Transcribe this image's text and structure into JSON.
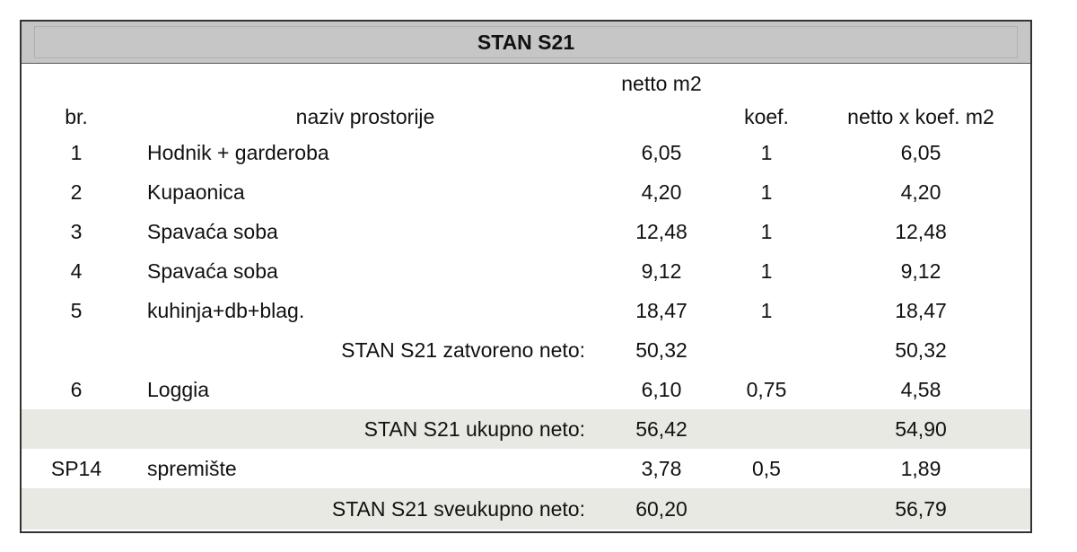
{
  "title": "STAN S21",
  "headers": {
    "br": "br.",
    "naziv": "naziv prostorije",
    "netto": "netto m2",
    "koef": "koef.",
    "result": "netto x koef. m2"
  },
  "rows": [
    {
      "br": "1",
      "naziv": "Hodnik + garderoba",
      "netto": "6,05",
      "koef": "1",
      "result": "6,05"
    },
    {
      "br": "2",
      "naziv": "Kupaonica",
      "netto": "4,20",
      "koef": "1",
      "result": "4,20"
    },
    {
      "br": "3",
      "naziv": "Spavaća soba",
      "netto": "12,48",
      "koef": "1",
      "result": "12,48"
    },
    {
      "br": "4",
      "naziv": "Spavaća soba",
      "netto": "9,12",
      "koef": "1",
      "result": "9,12"
    },
    {
      "br": "5",
      "naziv": "kuhinja+db+blag.",
      "netto": "18,47",
      "koef": "1",
      "result": "18,47"
    },
    {
      "label": "STAN S21 zatvoreno neto:",
      "netto": "50,32",
      "result": "50,32"
    },
    {
      "br": "6",
      "naziv": "Loggia",
      "netto": "6,10",
      "koef": "0,75",
      "result": "4,58"
    },
    {
      "label": "STAN S21 ukupno neto:",
      "netto": "56,42",
      "result": "54,90",
      "background": "#e9e9e3"
    },
    {
      "br": "SP14",
      "naziv": "spremište",
      "netto": "3,78",
      "koef": "0,5",
      "result": "1,89"
    },
    {
      "label": "STAN S21 sveukupno neto:",
      "netto": "60,20",
      "result": "56,79",
      "background": "#e9e9e3"
    }
  ]
}
